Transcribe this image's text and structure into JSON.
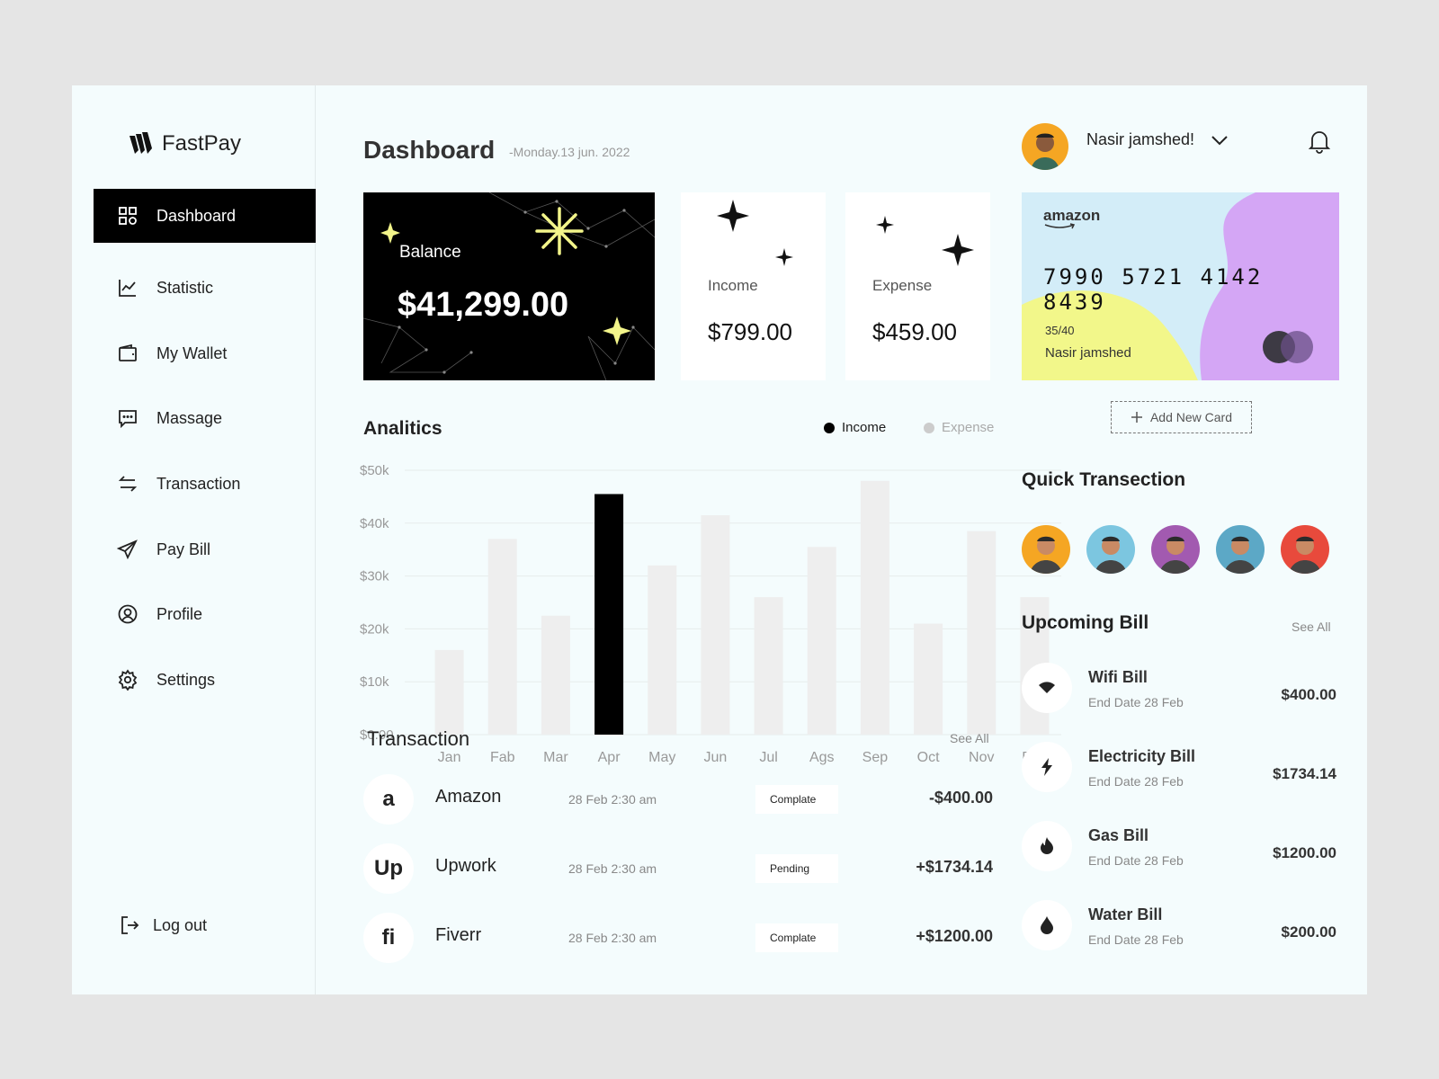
{
  "app": {
    "name": "FastPay"
  },
  "sidebar": {
    "items": [
      {
        "label": "Dashboard",
        "icon": "grid-icon",
        "active": true
      },
      {
        "label": "Statistic",
        "icon": "chart-line-icon"
      },
      {
        "label": "My Wallet",
        "icon": "wallet-icon"
      },
      {
        "label": "Massage",
        "icon": "message-icon"
      },
      {
        "label": "Transaction",
        "icon": "arrows-swap-icon"
      },
      {
        "label": "Pay Bill",
        "icon": "paper-plane-icon"
      },
      {
        "label": "Profile",
        "icon": "user-circle-icon"
      },
      {
        "label": "Settings",
        "icon": "gear-icon"
      }
    ],
    "logout_label": "Log out"
  },
  "header": {
    "title": "Dashboard",
    "date": "-Monday.13 jun. 2022"
  },
  "cards": {
    "balance": {
      "label": "Balance",
      "value": "$41,299.00"
    },
    "income": {
      "label": "Income",
      "value": "$799.00"
    },
    "expense": {
      "label": "Expense",
      "value": "$459.00"
    }
  },
  "analytics": {
    "title": "Analitics",
    "legend_income": "Income",
    "legend_expense": "Expense"
  },
  "chart_data": {
    "type": "bar",
    "categories": [
      "Jan",
      "Fab",
      "Mar",
      "Apr",
      "May",
      "Jun",
      "Jul",
      "Ags",
      "Sep",
      "Oct",
      "Nov",
      "Dec"
    ],
    "values": [
      16000,
      37000,
      22500,
      45500,
      32000,
      41500,
      26000,
      35500,
      48000,
      21000,
      38500,
      26000
    ],
    "highlight_index": 3,
    "ylim": [
      0,
      50000
    ],
    "yticks": [
      "$0.00",
      "$10k",
      "$20k",
      "$30k",
      "$40k",
      "$50k"
    ],
    "colors": {
      "bar": "#eeeeee",
      "highlight": "#000000"
    },
    "grid": true
  },
  "transactions": {
    "title": "Transaction",
    "see_all": "See All",
    "rows": [
      {
        "icon": "amazon-icon",
        "glyph": "a",
        "name": "Amazon",
        "date": "28 Feb 2:30 am",
        "status": "Complate",
        "amount": "-$400.00"
      },
      {
        "icon": "upwork-icon",
        "glyph": "Up",
        "name": "Upwork",
        "date": "28 Feb 2:30 am",
        "status": "Pending",
        "amount": "+$1734.14"
      },
      {
        "icon": "fiverr-icon",
        "glyph": "fi",
        "name": "Fiverr",
        "date": "28 Feb 2:30 am",
        "status": "Complate",
        "amount": "+$1200.00"
      }
    ]
  },
  "user": {
    "name": "Nasir jamshed!"
  },
  "card": {
    "brand": "amazon",
    "number": "7990 5721 4142 8439",
    "expiry": "35/40",
    "holder": "Nasir jamshed"
  },
  "add_card_label": "Add New Card",
  "quick": {
    "title": "Quick Transection",
    "avatar_colors": [
      "#f5a623",
      "#7cc6e0",
      "#a25ab0",
      "#5ca8c6",
      "#e84a3c"
    ]
  },
  "bills": {
    "title": "Upcoming Bill",
    "see_all": "See All",
    "rows": [
      {
        "icon": "wifi-icon",
        "name": "Wifi Bill",
        "date": "End Date 28 Feb",
        "amount": "$400.00"
      },
      {
        "icon": "lightning-icon",
        "name": "Electricity Bill",
        "date": "End Date 28 Feb",
        "amount": "$1734.14"
      },
      {
        "icon": "flame-icon",
        "name": "Gas Bill",
        "date": "End Date 28 Feb",
        "amount": "$1200.00"
      },
      {
        "icon": "water-drop-icon",
        "name": "Water Bill",
        "date": "End Date 28 Feb",
        "amount": "$200.00"
      }
    ]
  }
}
